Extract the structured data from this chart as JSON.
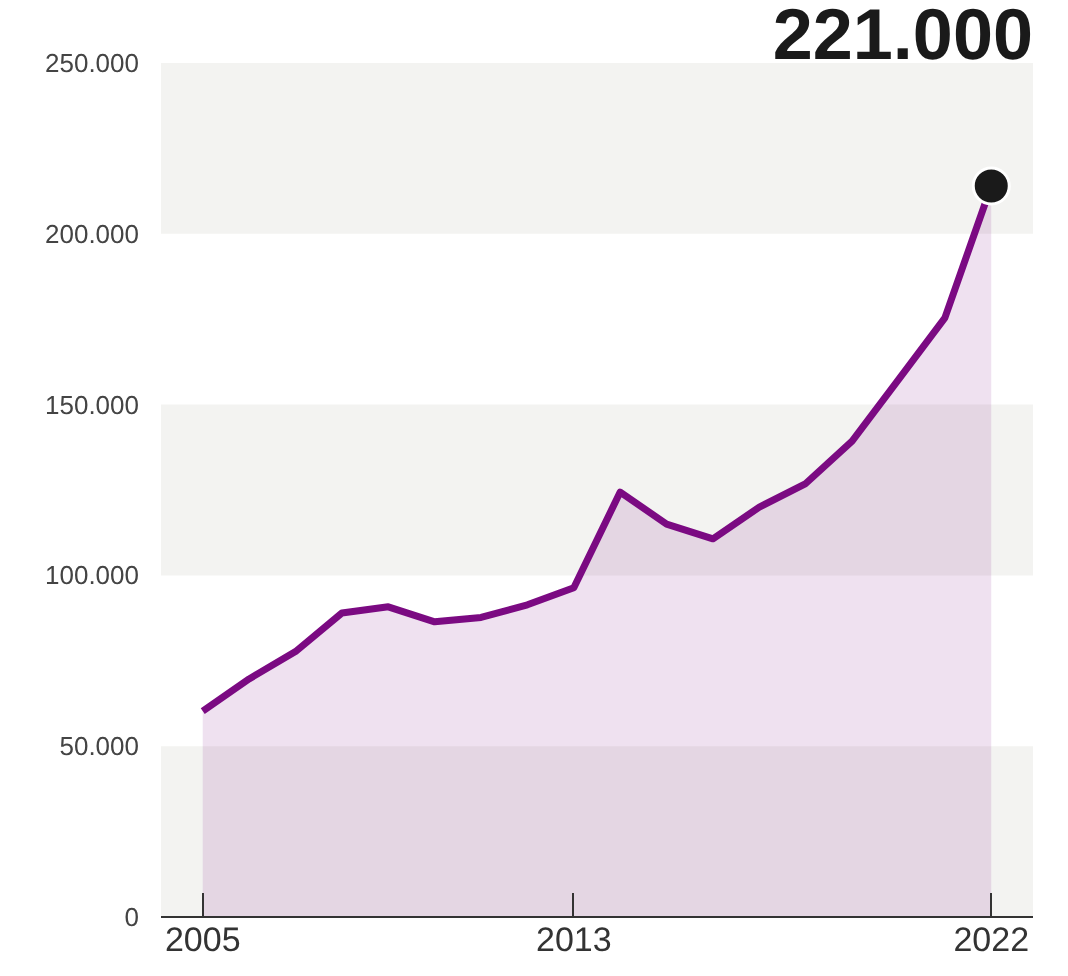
{
  "chart_data": {
    "type": "area",
    "annotations": [
      "221.000"
    ],
    "x": [
      2005,
      2006,
      2007,
      2008,
      2009,
      2010,
      2011,
      2012,
      2013,
      2014,
      2015,
      2016,
      2017,
      2018,
      2019,
      2020,
      2021,
      2022
    ],
    "series": [
      {
        "color": "#7b0a82",
        "values": [
          60300,
          69700,
          77700,
          89000,
          90800,
          86400,
          87700,
          91400,
          96400,
          124400,
          115000,
          110700,
          120000,
          126900,
          139300,
          157300,
          175400,
          214000
        ]
      },
      {
        "type": "scatter",
        "color": "#1a1a1a",
        "x": [
          2022
        ],
        "values": [
          214000
        ]
      }
    ],
    "xlim": [
      2004.1,
      2022.9
    ],
    "ylim": [
      0,
      250000
    ],
    "xticks": [
      2005,
      2013,
      2022
    ],
    "yticks": [
      0,
      {
        "value": 50000,
        "label": "50.000"
      },
      {
        "value": 100000,
        "label": "100.000"
      },
      {
        "value": 150000,
        "label": "150.000"
      },
      {
        "value": 200000,
        "label": "200.000"
      },
      {
        "value": 250000,
        "label": "250.000"
      }
    ],
    "bands": [
      {
        "axis": "y",
        "from": 0,
        "to": 50000,
        "color": "#f3f3f1"
      },
      {
        "axis": "y",
        "from": 100000,
        "to": 150000,
        "color": "#f3f3f1"
      },
      {
        "axis": "y",
        "from": 200000,
        "to": 250000,
        "color": "#f3f3f1"
      }
    ],
    "grid": false
  }
}
